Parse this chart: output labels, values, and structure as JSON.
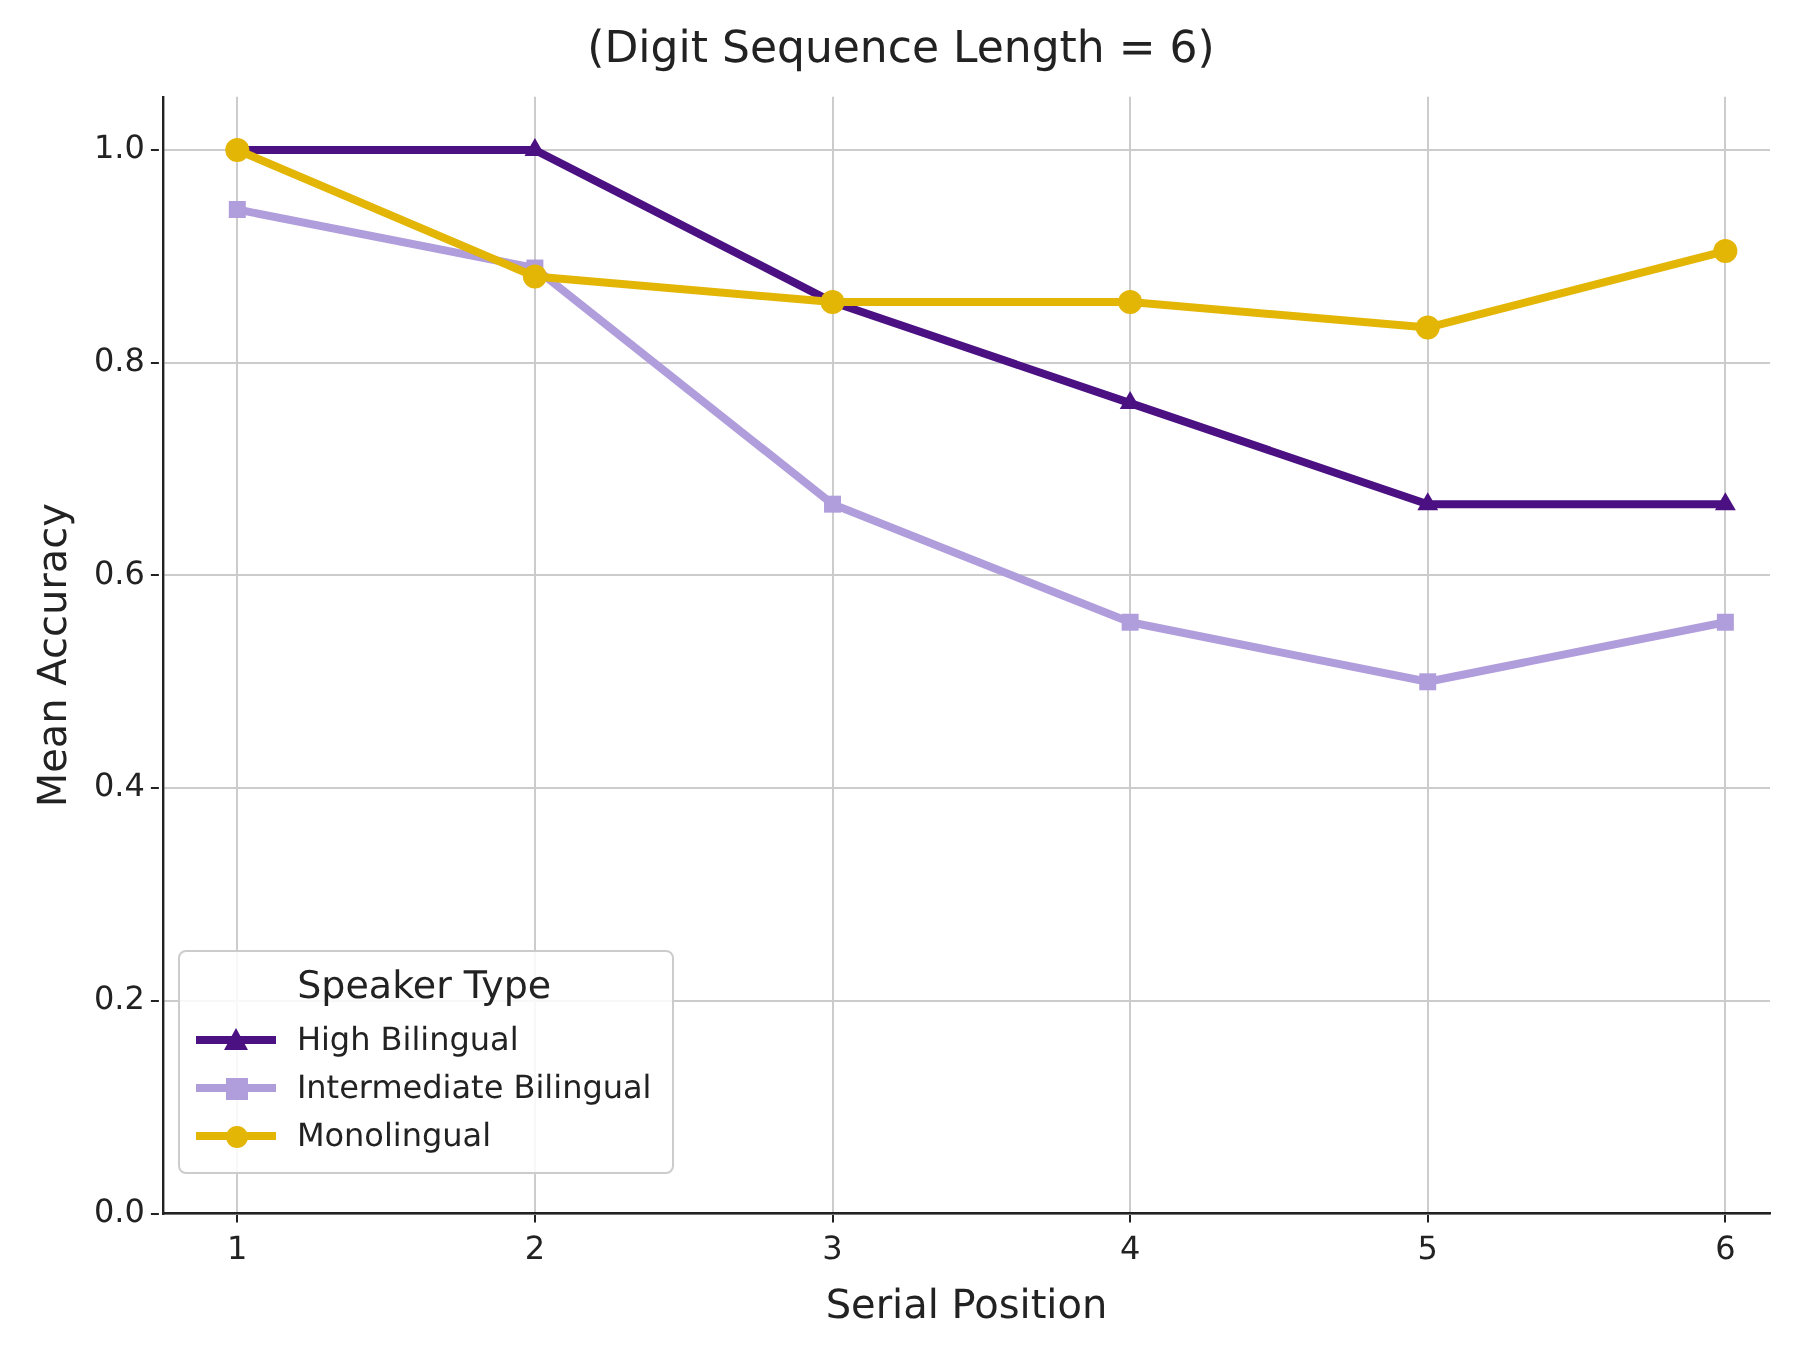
{
  "chart_data": {
    "type": "line",
    "title": "(Digit Sequence Length = 6)",
    "xlabel": "Serial Position",
    "ylabel": "Mean Accuracy",
    "legend_title": "Speaker Type",
    "x": [
      1,
      2,
      3,
      4,
      5,
      6
    ],
    "series": [
      {
        "name": "High Bilingual",
        "color": "#4b1182",
        "marker": "triangle",
        "values": [
          1.0,
          1.0,
          0.857,
          0.762,
          0.667,
          0.667
        ]
      },
      {
        "name": "Intermediate Bilingual",
        "color": "#b09ddb",
        "marker": "square",
        "values": [
          0.944,
          0.889,
          0.667,
          0.556,
          0.5,
          0.556
        ]
      },
      {
        "name": "Monolingual",
        "color": "#e3b505",
        "marker": "circle",
        "values": [
          1.0,
          0.881,
          0.857,
          0.857,
          0.833,
          0.905
        ]
      }
    ],
    "xlim": [
      0.75,
      6.15
    ],
    "xticks": [
      1,
      2,
      3,
      4,
      5,
      6
    ],
    "ylim": [
      0,
      1.05
    ],
    "yticks": [
      {
        "value": 0,
        "label": "0.0"
      },
      {
        "value": 0.2,
        "label": "0.2"
      },
      {
        "value": 0.4,
        "label": "0.4"
      },
      {
        "value": 0.6,
        "label": "0.6"
      },
      {
        "value": 0.8,
        "label": "0.8"
      },
      {
        "value": 1.0,
        "label": "1.0"
      }
    ],
    "grid": true,
    "legend": "bottom left",
    "line_style": "solid"
  }
}
